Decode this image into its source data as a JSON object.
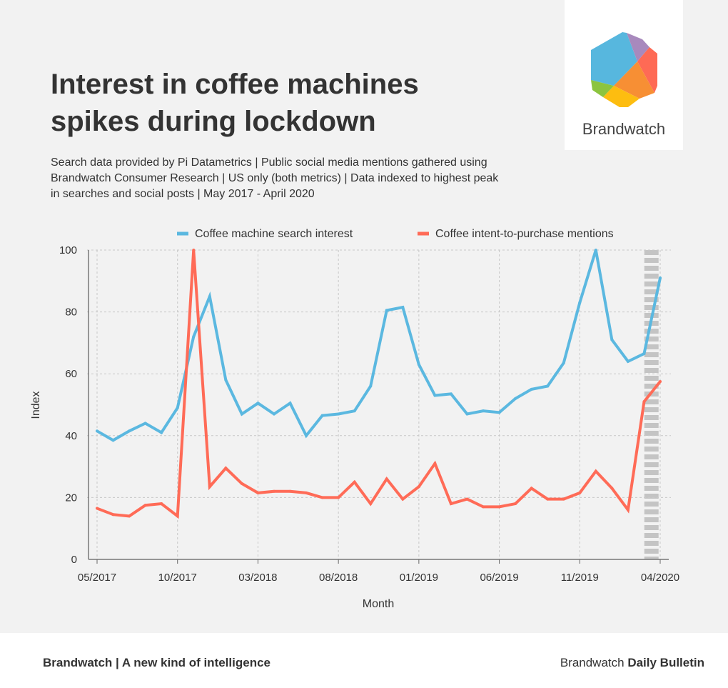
{
  "header": {
    "title": "Interest in coffee machines spikes during lockdown",
    "subtitle": "Search data provided by Pi Datametrics | Public social media mentions gathered using Brandwatch Consumer Research | US only (both metrics) | Data indexed to highest peak in searches and social posts | May 2017 - April 2020"
  },
  "logo": {
    "text": "Brandwatch"
  },
  "footer": {
    "left": "Brandwatch | A new kind of intelligence",
    "right_prefix": "Brandwatch ",
    "right_bold": "Daily Bulletin"
  },
  "chart_data": {
    "type": "line",
    "xlabel": "Month",
    "ylabel": "Index",
    "ylim": [
      0,
      100
    ],
    "yticks": [
      0,
      20,
      40,
      60,
      80,
      100
    ],
    "xtick_labels": [
      "05/2017",
      "10/2017",
      "03/2018",
      "08/2018",
      "01/2019",
      "06/2019",
      "11/2019",
      "04/2020"
    ],
    "grid": true,
    "legend": "top",
    "x": [
      "05/2017",
      "06/2017",
      "07/2017",
      "08/2017",
      "09/2017",
      "10/2017",
      "11/2017",
      "12/2017",
      "01/2018",
      "02/2018",
      "03/2018",
      "04/2018",
      "05/2018",
      "06/2018",
      "07/2018",
      "08/2018",
      "09/2018",
      "10/2018",
      "11/2018",
      "12/2018",
      "01/2019",
      "02/2019",
      "03/2019",
      "04/2019",
      "05/2019",
      "06/2019",
      "07/2019",
      "08/2019",
      "09/2019",
      "10/2019",
      "11/2019",
      "12/2019",
      "01/2020",
      "02/2020",
      "03/2020",
      "04/2020"
    ],
    "highlight": {
      "from": "03/2020",
      "to": "04/2020",
      "color": "#c4c4c4"
    },
    "series": [
      {
        "name": "Coffee machine search interest",
        "color": "#5bb8e0",
        "values": [
          41.5,
          38.5,
          41.5,
          44,
          41,
          49,
          72,
          85,
          58,
          47,
          50.5,
          47,
          50.5,
          40,
          46.5,
          47,
          48,
          56,
          80.5,
          81.5,
          63,
          53,
          53.5,
          47,
          48,
          47.5,
          52,
          55,
          56,
          63.5,
          83,
          100,
          71,
          64,
          66.5,
          91
        ]
      },
      {
        "name": "Coffee intent-to-purchase mentions",
        "color": "#ff6b57",
        "values": [
          16.5,
          14.5,
          14,
          17.5,
          18,
          14,
          100,
          23.5,
          29.5,
          24.5,
          21.5,
          22,
          22,
          21.5,
          20,
          20,
          25,
          18,
          26,
          19.5,
          23.5,
          31,
          18,
          19.5,
          17,
          17,
          18,
          23,
          19.5,
          19.5,
          21.5,
          28.5,
          23,
          16,
          51,
          57.5
        ]
      }
    ]
  }
}
